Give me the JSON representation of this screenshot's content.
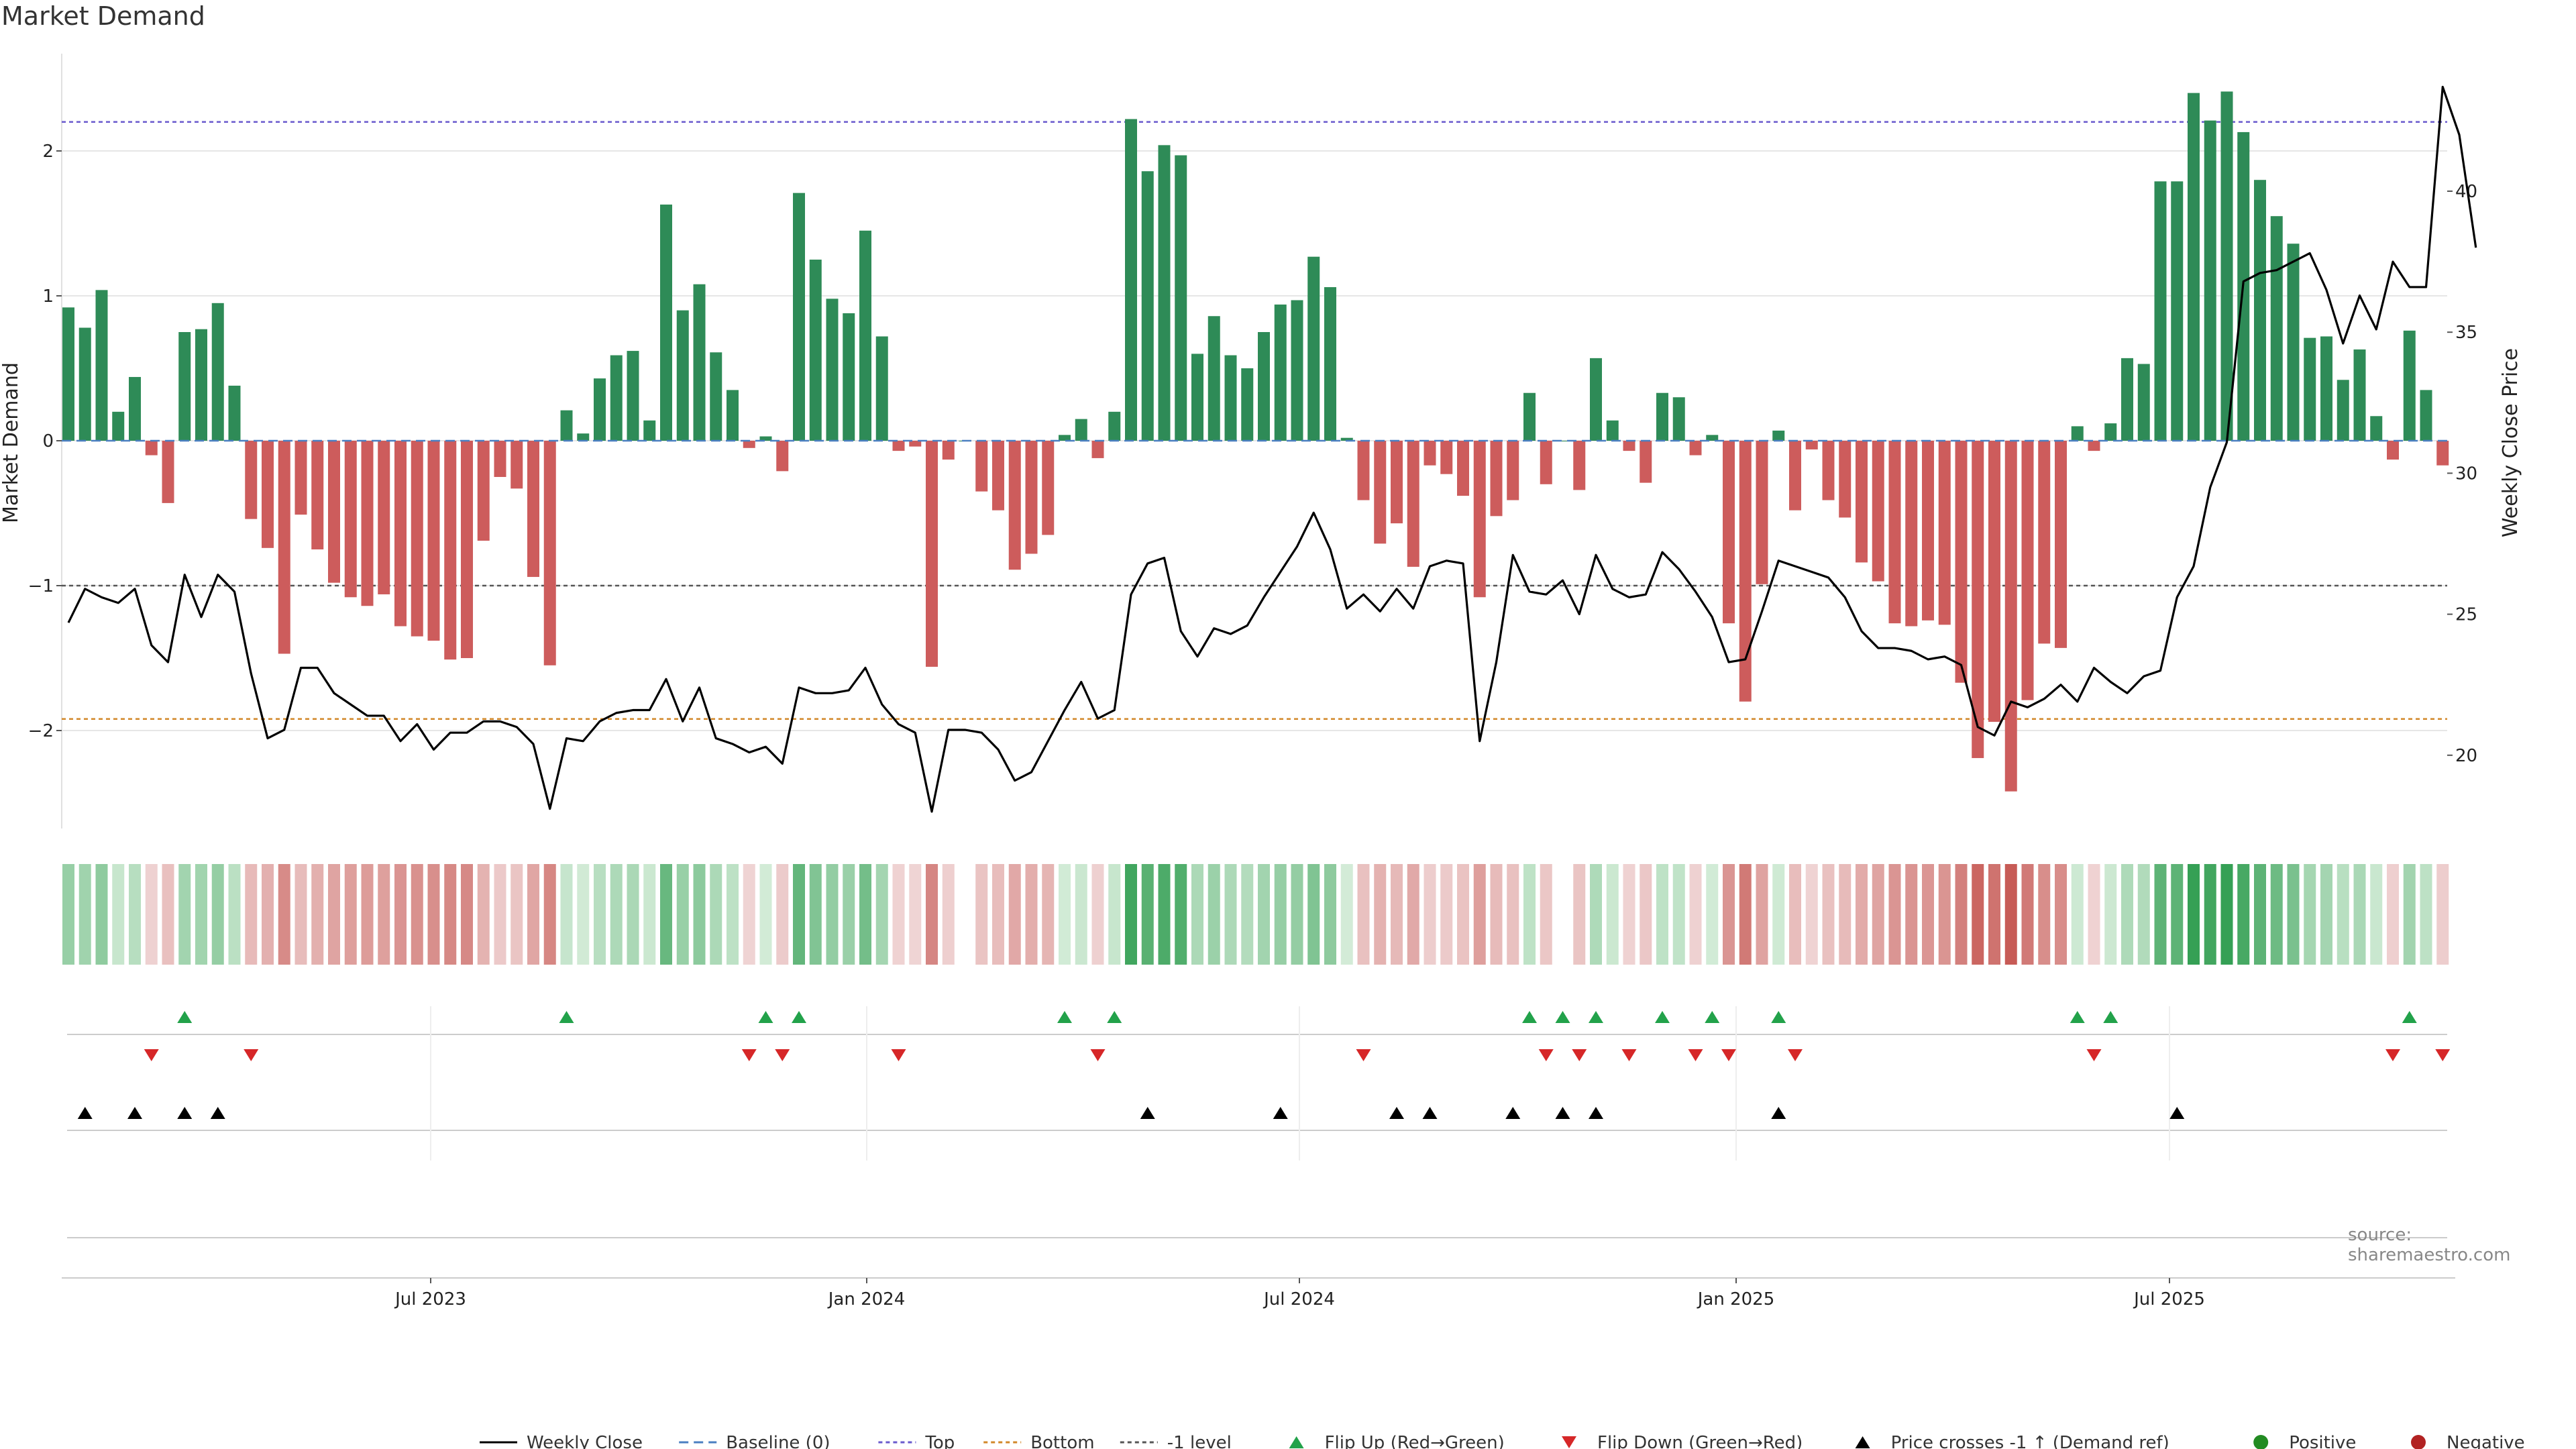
{
  "title": "Market Demand",
  "source": "source: sharemaestro.com",
  "colors": {
    "positive": "#2e8b57",
    "negative": "#cd5c5c",
    "top_line": "#6a5acd",
    "bottom_line": "#d2882a",
    "neg1_line": "#555555",
    "baseline": "#4a7fc1",
    "flip_up": "#22a24a",
    "flip_down": "#d62728",
    "price_cross": "#000000",
    "legend_positive": "#228b22",
    "legend_negative": "#b22222"
  },
  "legend": {
    "weekly_close": "Weekly Close",
    "baseline": "Baseline (0)",
    "top": "Top",
    "bottom": "Bottom",
    "neg1": "-1 level",
    "flip_up": "Flip Up (Red→Green)",
    "flip_down": "Flip Down (Green→Red)",
    "price_cross": "Price crosses -1 ↑ (Demand ref)",
    "positive": "Positive",
    "negative": "Negative"
  },
  "chart_data": {
    "type": "bar",
    "title": "Market Demand",
    "ylabel": "Market Demand",
    "y2label": "Weekly Close Price",
    "ylim": [
      -2.7,
      2.7
    ],
    "y2lim": [
      17.6,
      45.1
    ],
    "yticks": [
      -2,
      -1,
      0,
      1,
      2
    ],
    "y2ticks": [
      20,
      25,
      30,
      35,
      40
    ],
    "xticks": [
      "Jul 2023",
      "Jan 2024",
      "Jul 2024",
      "Jan 2025",
      "Jul 2025"
    ],
    "levels": {
      "top": 2.2,
      "bottom": -1.92,
      "neg1": -1,
      "baseline": 0
    },
    "demand": [
      0.92,
      0.78,
      1.04,
      0.2,
      0.44,
      -0.1,
      -0.43,
      0.75,
      0.77,
      0.95,
      0.38,
      -0.54,
      -0.74,
      -1.47,
      -0.51,
      -0.75,
      -0.98,
      -1.08,
      -1.14,
      -1.06,
      -1.28,
      -1.35,
      -1.38,
      -1.51,
      -1.5,
      -0.69,
      -0.25,
      -0.33,
      -0.94,
      -1.55,
      0.21,
      0.05,
      0.43,
      0.59,
      0.62,
      0.14,
      1.63,
      0.9,
      1.08,
      0.61,
      0.35,
      -0.05,
      0.03,
      -0.21,
      1.71,
      1.25,
      0.98,
      0.88,
      1.45,
      0.72,
      -0.07,
      -0.04,
      -1.56,
      -0.13,
      0.0,
      -0.35,
      -0.48,
      -0.89,
      -0.78,
      -0.65,
      0.04,
      0.15,
      -0.12,
      0.2,
      2.22,
      1.86,
      2.04,
      1.97,
      0.6,
      0.86,
      0.59,
      0.5,
      0.75,
      0.94,
      0.97,
      1.27,
      1.06,
      0.02,
      -0.41,
      -0.71,
      -0.57,
      -0.87,
      -0.17,
      -0.23,
      -0.38,
      -1.08,
      -0.52,
      -0.41,
      0.33,
      -0.3,
      0.0,
      -0.34,
      0.57,
      0.14,
      -0.07,
      -0.29,
      0.33,
      0.3,
      -0.1,
      0.04,
      -1.26,
      -1.8,
      -0.99,
      0.07,
      -0.48,
      -0.06,
      -0.41,
      -0.53,
      -0.84,
      -0.97,
      -1.26,
      -1.28,
      -1.24,
      -1.27,
      -1.67,
      -2.19,
      -1.94,
      -2.42,
      -1.79,
      -1.4,
      -1.43,
      0.1,
      -0.07,
      0.12,
      0.57,
      0.53,
      1.79,
      1.79,
      2.4,
      2.21,
      2.41,
      2.13,
      1.8,
      1.55,
      1.36,
      0.71,
      0.72,
      0.42,
      0.63,
      0.17,
      -0.13,
      0.76,
      0.35,
      -0.17
    ],
    "price": [
      24.7,
      25.9,
      25.6,
      25.4,
      25.9,
      23.9,
      23.3,
      26.4,
      24.9,
      26.4,
      25.8,
      22.9,
      20.6,
      20.9,
      23.1,
      23.1,
      22.2,
      21.8,
      21.4,
      21.4,
      20.5,
      21.1,
      20.2,
      20.8,
      20.8,
      21.2,
      21.2,
      21.0,
      20.4,
      18.1,
      20.6,
      20.5,
      21.2,
      21.5,
      21.6,
      21.6,
      22.7,
      21.2,
      22.4,
      20.6,
      20.4,
      20.1,
      20.3,
      19.7,
      22.4,
      22.2,
      22.2,
      22.3,
      23.1,
      21.8,
      21.1,
      20.8,
      18.0,
      20.9,
      20.9,
      20.8,
      20.2,
      19.1,
      19.4,
      20.5,
      21.6,
      22.6,
      21.3,
      21.6,
      25.7,
      26.8,
      27.0,
      24.4,
      23.5,
      24.5,
      24.3,
      24.6,
      25.6,
      26.5,
      27.4,
      28.6,
      27.3,
      25.2,
      25.7,
      25.1,
      25.9,
      25.2,
      26.7,
      26.9,
      26.8,
      20.5,
      23.3,
      27.1,
      25.8,
      25.7,
      26.2,
      25.0,
      27.1,
      25.9,
      25.6,
      25.7,
      27.2,
      26.6,
      25.8,
      24.9,
      23.3,
      23.4,
      25.1,
      26.9,
      26.7,
      26.5,
      26.3,
      25.6,
      24.4,
      23.8,
      23.8,
      23.7,
      23.4,
      23.5,
      23.2,
      21.0,
      20.7,
      21.9,
      21.7,
      22.0,
      22.5,
      21.9,
      23.1,
      22.6,
      22.2,
      22.8,
      23.0,
      25.6,
      26.7,
      29.5,
      31.1,
      36.8,
      37.1,
      37.2,
      37.5,
      37.8,
      36.5,
      34.6,
      36.3,
      35.1,
      37.5,
      36.6,
      36.6,
      43.7,
      42.0,
      38.0
    ],
    "flip_up": [
      7,
      30,
      42,
      44,
      60,
      63,
      88,
      90,
      92,
      96,
      99,
      103,
      121,
      123,
      141
    ],
    "flip_down": [
      5,
      11,
      41,
      43,
      50,
      62,
      78,
      89,
      91,
      94,
      98,
      100,
      104,
      122,
      140,
      143
    ],
    "price_cross": [
      1,
      4,
      7,
      9,
      65,
      73,
      80,
      82,
      87,
      90,
      92,
      103,
      127
    ]
  }
}
